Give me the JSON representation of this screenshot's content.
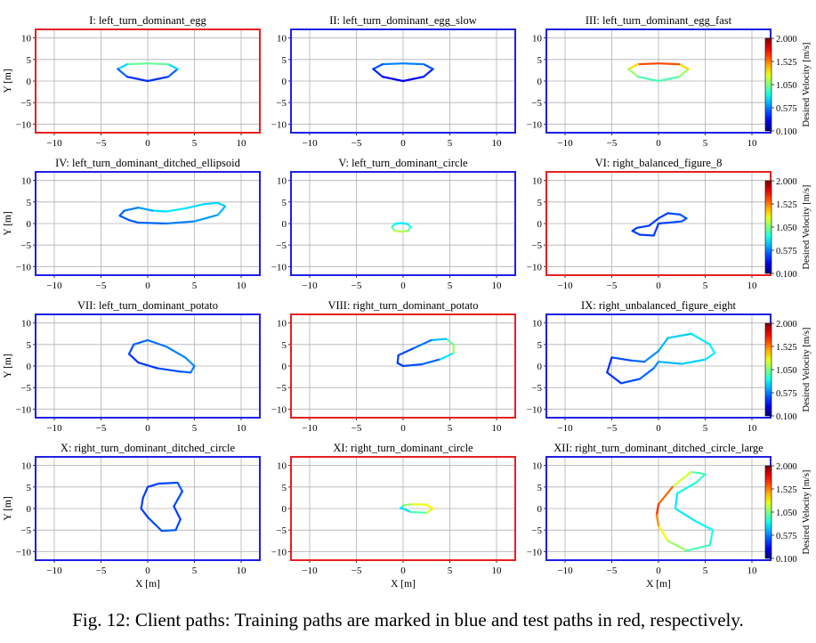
{
  "caption": "Fig. 12: Client paths: Training paths are marked in blue and test paths in red, respectively.",
  "colors": {
    "training_frame": "#1f1fe6",
    "test_frame": "#e62020",
    "grid": "#b0b0b0"
  },
  "axes": {
    "xlabel": "X [m]",
    "ylabel": "Y [m]",
    "xlim": [
      -12,
      12
    ],
    "ylim": [
      -12,
      12
    ],
    "xticks": [
      -10,
      -5,
      0,
      5,
      10
    ],
    "yticks": [
      -10,
      -5,
      0,
      5,
      10
    ],
    "grid": true
  },
  "colorbar": {
    "label": "Desired Velocity [m/s]",
    "ticks": [
      "2.000",
      "1.525",
      "1.050",
      "0.575",
      "0.100"
    ],
    "range": [
      0.1,
      2.0
    ],
    "colormap": "jet"
  },
  "chart_data": [
    {
      "type": "line",
      "title": "I: left_turn_dominant_egg",
      "split": "test",
      "x": [
        0,
        2.2,
        3.2,
        2.2,
        0,
        -2.2,
        -3.2,
        -2.2,
        0
      ],
      "y": [
        0,
        1.0,
        2.8,
        3.9,
        4.1,
        3.9,
        2.8,
        1.0,
        0
      ],
      "v": [
        0.4,
        0.45,
        0.6,
        0.9,
        1.1,
        0.9,
        0.6,
        0.45,
        0.4
      ]
    },
    {
      "type": "line",
      "title": "II: left_turn_dominant_egg_slow",
      "split": "training",
      "x": [
        0,
        2.2,
        3.2,
        2.2,
        0,
        -2.2,
        -3.2,
        -2.2,
        0
      ],
      "y": [
        0,
        1.0,
        2.8,
        3.9,
        4.1,
        3.9,
        2.8,
        1.0,
        0
      ],
      "v": [
        0.3,
        0.35,
        0.45,
        0.55,
        0.6,
        0.55,
        0.45,
        0.35,
        0.3
      ]
    },
    {
      "type": "line",
      "title": "III: left_turn_dominant_egg_fast",
      "split": "training",
      "x": [
        0,
        2.2,
        3.2,
        2.2,
        0,
        -2.2,
        -3.2,
        -2.2,
        0
      ],
      "y": [
        0,
        1.0,
        2.8,
        3.9,
        4.1,
        3.9,
        2.8,
        1.0,
        0
      ],
      "v": [
        0.9,
        1.0,
        1.2,
        1.5,
        1.75,
        1.5,
        1.2,
        1.0,
        0.9
      ]
    },
    {
      "type": "line",
      "title": "IV: left_turn_dominant_ditched_ellipsoid",
      "split": "training",
      "x": [
        -2.0,
        -1.0,
        2.0,
        5.0,
        7.5,
        8.3,
        7.5,
        6.0,
        4.0,
        2.0,
        0.5,
        -1.0,
        -2.5,
        -3.0,
        -2.0
      ],
      "y": [
        0.8,
        0.2,
        0.0,
        0.5,
        2.0,
        4.0,
        4.8,
        4.5,
        3.5,
        2.8,
        3.0,
        3.7,
        3.0,
        1.8,
        0.8
      ],
      "v": [
        0.5,
        0.5,
        0.55,
        0.6,
        0.65,
        0.7,
        0.75,
        0.75,
        0.75,
        0.8,
        0.7,
        0.6,
        0.55,
        0.5,
        0.5
      ]
    },
    {
      "type": "line",
      "title": "V: left_turn_dominant_circle",
      "split": "training",
      "x": [
        -0.2,
        0.5,
        0.8,
        0.5,
        -0.2,
        -0.9,
        -1.2,
        -0.9,
        -0.2
      ],
      "y": [
        -1.9,
        -1.7,
        -0.9,
        -0.1,
        0.1,
        -0.1,
        -0.9,
        -1.7,
        -1.9
      ],
      "v": [
        1.2,
        1.1,
        0.9,
        0.8,
        0.75,
        0.8,
        0.9,
        1.1,
        1.2
      ]
    },
    {
      "type": "line",
      "title": "VI: right_balanced_figure_8",
      "split": "test",
      "x": [
        0,
        1.0,
        2.5,
        3.0,
        2.3,
        1.0,
        0,
        -1.0,
        -2.3,
        -2.8,
        -2.0,
        -0.5,
        0
      ],
      "y": [
        0,
        0.2,
        0.5,
        1.2,
        2.1,
        2.4,
        1.2,
        -0.5,
        -1.0,
        -1.7,
        -2.6,
        -2.8,
        0
      ],
      "v": [
        0.45,
        0.45,
        0.5,
        0.5,
        0.5,
        0.45,
        0.45,
        0.45,
        0.45,
        0.45,
        0.45,
        0.45,
        0.45
      ]
    },
    {
      "type": "line",
      "title": "VII: left_turn_dominant_potato",
      "split": "training",
      "x": [
        0,
        2.0,
        4.0,
        5.0,
        4.6,
        3.5,
        1.0,
        -1.0,
        -2.0,
        -1.5,
        0
      ],
      "y": [
        6.0,
        4.5,
        2.0,
        0,
        -1.5,
        -1.3,
        -0.5,
        0.8,
        2.8,
        5.0,
        6.0
      ],
      "v": [
        0.55,
        0.55,
        0.6,
        0.6,
        0.55,
        0.5,
        0.45,
        0.4,
        0.45,
        0.5,
        0.55
      ]
    },
    {
      "type": "line",
      "title": "VIII: right_turn_dominant_potato",
      "split": "test",
      "x": [
        0,
        2.0,
        4.0,
        5.4,
        5.4,
        4.6,
        3.0,
        1.0,
        -0.5,
        -0.6,
        0
      ],
      "y": [
        0,
        0.4,
        1.6,
        3.0,
        5.0,
        6.3,
        6.0,
        4.0,
        2.5,
        0.7,
        0
      ],
      "v": [
        0.45,
        0.5,
        0.55,
        1.0,
        1.2,
        0.8,
        0.6,
        0.5,
        0.45,
        0.45,
        0.45
      ]
    },
    {
      "type": "line",
      "title": "IX: right_unbalanced_figure_eight",
      "split": "training",
      "x": [
        0,
        2.5,
        5.0,
        6.0,
        5.5,
        3.5,
        1.0,
        0,
        -1.5,
        -3.0,
        -5.0,
        -5.5,
        -4.0,
        -2.0,
        -0.5,
        0
      ],
      "y": [
        1.0,
        0.5,
        1.5,
        3.0,
        5.0,
        7.5,
        6.5,
        3.5,
        1.0,
        1.3,
        2.0,
        -1.5,
        -4.0,
        -3.0,
        -0.5,
        1.0
      ],
      "v": [
        0.65,
        0.7,
        0.75,
        0.8,
        0.8,
        0.75,
        0.7,
        0.65,
        0.55,
        0.5,
        0.45,
        0.4,
        0.45,
        0.5,
        0.55,
        0.65
      ]
    },
    {
      "type": "line",
      "title": "X: right_turn_dominant_ditched_circle",
      "split": "training",
      "x": [
        0,
        1.2,
        3.2,
        3.7,
        2.8,
        3.5,
        3.0,
        1.5,
        0,
        -0.7,
        -0.5,
        0
      ],
      "y": [
        5.0,
        5.8,
        6.0,
        4.0,
        0.5,
        -2.5,
        -5.0,
        -5.2,
        -2.0,
        0,
        2.5,
        5.0
      ],
      "v": [
        0.45,
        0.45,
        0.5,
        0.5,
        0.45,
        0.45,
        0.5,
        0.5,
        0.45,
        0.45,
        0.45,
        0.45
      ]
    },
    {
      "type": "line",
      "title": "XI: right_turn_dominant_circle",
      "split": "test",
      "x": [
        0,
        0.8,
        2.5,
        3.2,
        2.5,
        0.8,
        0,
        -0.3,
        0
      ],
      "y": [
        0,
        -0.8,
        -1.0,
        0,
        0.9,
        1.0,
        0.7,
        0,
        0
      ],
      "v": [
        0.7,
        0.8,
        1.1,
        1.3,
        1.3,
        1.2,
        1.0,
        0.8,
        0.7
      ]
    },
    {
      "type": "line",
      "title": "XII: right_turn_dominant_ditched_circle_large",
      "split": "training",
      "x": [
        0,
        1.0,
        3.0,
        5.5,
        5.8,
        4.0,
        1.8,
        2.0,
        4.0,
        5.0,
        3.5,
        1.5,
        0,
        -0.2,
        0
      ],
      "y": [
        -4.0,
        -7.5,
        -9.8,
        -8.5,
        -5.0,
        -3.0,
        0,
        3.5,
        6.0,
        8.0,
        8.5,
        5.0,
        1.0,
        -1.5,
        -4.0
      ],
      "v": [
        1.4,
        1.2,
        1.0,
        0.9,
        0.85,
        0.8,
        0.75,
        0.8,
        0.9,
        0.9,
        1.0,
        1.4,
        1.75,
        1.6,
        1.4
      ]
    }
  ]
}
